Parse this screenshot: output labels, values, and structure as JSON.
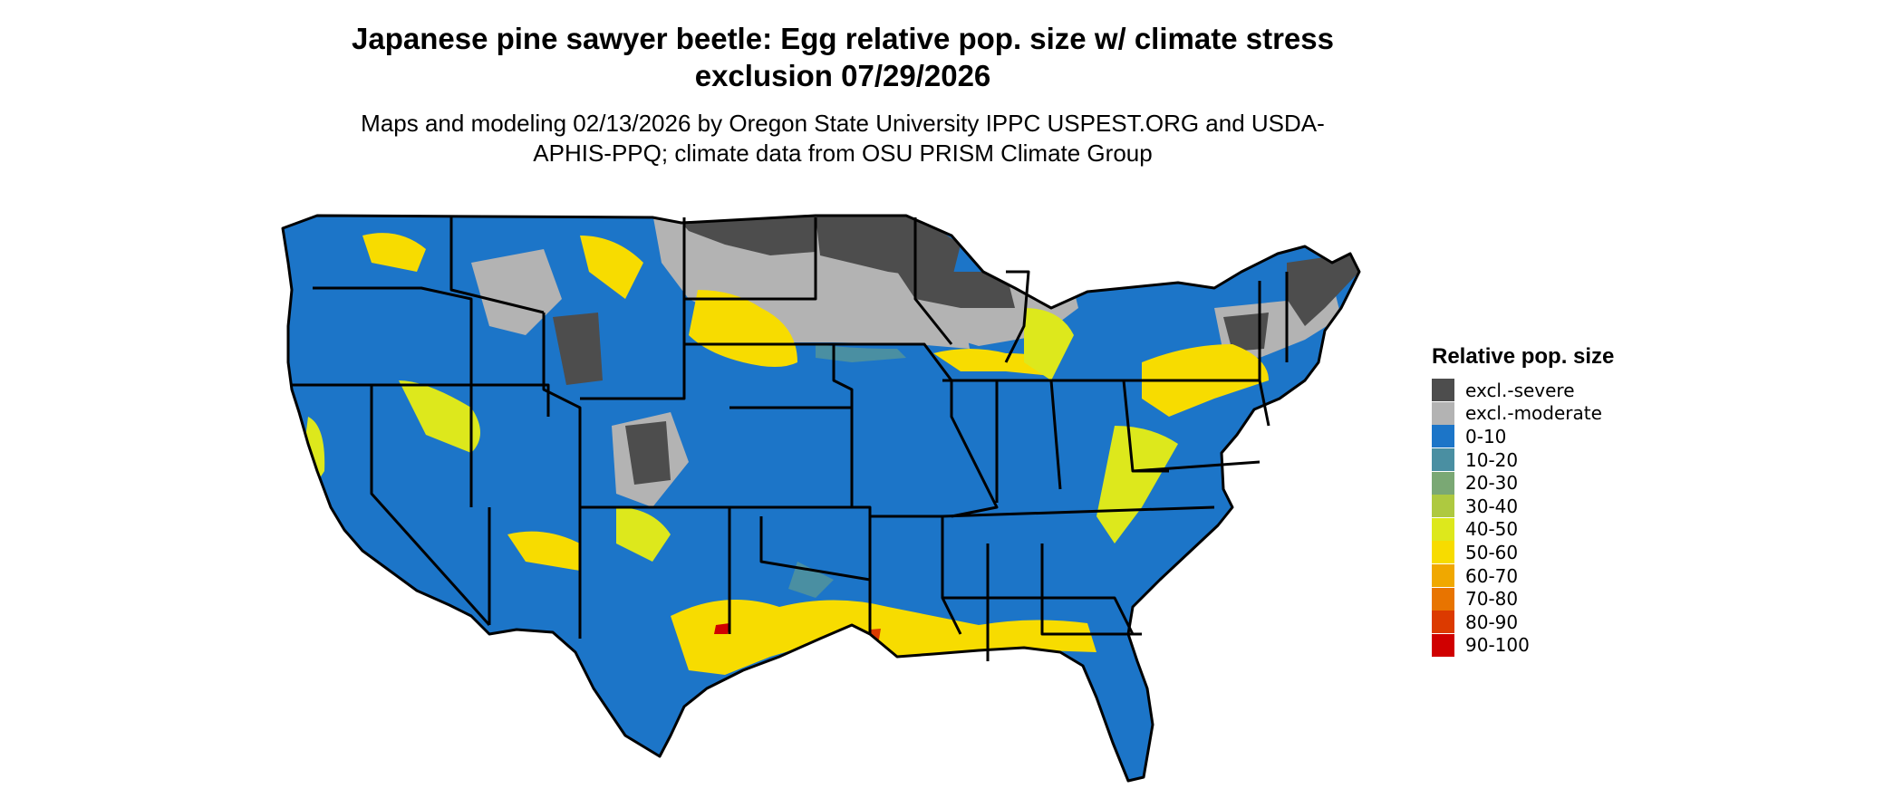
{
  "title": "Japanese pine sawyer beetle: Egg relative pop. size w/ climate stress exclusion 07/29/2026",
  "subtitle": "Maps and modeling 02/13/2026 by Oregon State University IPPC USPEST.ORG and USDA-APHIS-PPQ; climate data from OSU PRISM Climate Group",
  "legend": {
    "title": "Relative pop. size",
    "items": [
      {
        "label": "excl.-severe",
        "color": "#4d4d4d"
      },
      {
        "label": "excl.-moderate",
        "color": "#b3b3b3"
      },
      {
        "label": "0-10",
        "color": "#1c75c8"
      },
      {
        "label": "10-20",
        "color": "#4a8fa2"
      },
      {
        "label": "20-30",
        "color": "#7aa874"
      },
      {
        "label": "30-40",
        "color": "#aec940"
      },
      {
        "label": "40-50",
        "color": "#dde81c"
      },
      {
        "label": "50-60",
        "color": "#f7dc00"
      },
      {
        "label": "60-70",
        "color": "#f0a800"
      },
      {
        "label": "70-80",
        "color": "#e87400"
      },
      {
        "label": "80-90",
        "color": "#dc3a00"
      },
      {
        "label": "90-100",
        "color": "#d00000"
      }
    ]
  },
  "map": {
    "region": "Contiguous United States",
    "base_color": "#1c75c8",
    "border_color": "#000000"
  }
}
